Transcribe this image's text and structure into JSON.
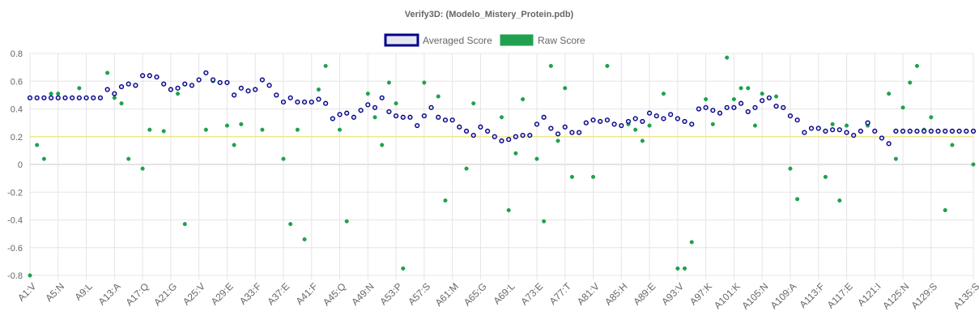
{
  "chart_data": {
    "type": "scatter",
    "title": "Verify3D:  (Modelo_Mistery_Protein.pdb)",
    "legend_position": "top-center",
    "ylim": [
      -0.8,
      0.8
    ],
    "yticks": [
      "0.8",
      "0.6",
      "0.4",
      "0.2",
      "0",
      "-0.2",
      "-0.4",
      "-0.6",
      "-0.8"
    ],
    "ytick_values": [
      0.8,
      0.6,
      0.4,
      0.2,
      0,
      -0.2,
      -0.4,
      -0.6,
      -0.8
    ],
    "threshold": 0.2,
    "colors": {
      "averaged_stroke": "#00008b",
      "averaged_fill": "#e6e6f0",
      "raw": "#21a04f",
      "threshold": "#f0e68c",
      "grid": "#e5e5e5",
      "zero": "#c8c8c8"
    },
    "x_labels": [
      "A1:V",
      "A5:N",
      "A9:L",
      "A13:A",
      "A17:Q",
      "A21:G",
      "A25:V",
      "A29:E",
      "A33:F",
      "A37:E",
      "A41:F",
      "A45:Q",
      "A49:N",
      "A53:P",
      "A57:S",
      "A61:M",
      "A65:G",
      "A69:L",
      "A73:E",
      "A77:T",
      "A81:V",
      "A85:H",
      "A89:E",
      "A93:V",
      "A97:K",
      "A101:K",
      "A105:N",
      "A109:A",
      "A113:F",
      "A117:E",
      "A121:I",
      "A125:N",
      "A129:S",
      "A135:S"
    ],
    "x_label_positions": [
      1,
      5,
      9,
      13,
      17,
      21,
      25,
      29,
      33,
      37,
      41,
      45,
      49,
      53,
      57,
      61,
      65,
      69,
      73,
      77,
      81,
      85,
      89,
      93,
      97,
      101,
      105,
      109,
      113,
      117,
      121,
      125,
      129,
      135
    ],
    "residue_count": 135,
    "series": [
      {
        "name": "Averaged Score",
        "values": [
          0.48,
          0.48,
          0.48,
          0.48,
          0.48,
          0.48,
          0.48,
          0.48,
          0.48,
          0.48,
          0.48,
          0.54,
          0.51,
          0.56,
          0.58,
          0.57,
          0.64,
          0.64,
          0.63,
          0.58,
          0.54,
          0.55,
          0.58,
          0.57,
          0.61,
          0.66,
          0.61,
          0.59,
          0.59,
          0.5,
          0.55,
          0.53,
          0.54,
          0.61,
          0.57,
          0.5,
          0.45,
          0.48,
          0.45,
          0.45,
          0.45,
          0.47,
          0.44,
          0.33,
          0.36,
          0.37,
          0.34,
          0.39,
          0.43,
          0.41,
          0.48,
          0.38,
          0.35,
          0.34,
          0.34,
          0.28,
          0.35,
          0.41,
          0.34,
          0.32,
          0.32,
          0.27,
          0.24,
          0.21,
          0.27,
          0.24,
          0.2,
          0.17,
          0.18,
          0.2,
          0.21,
          0.21,
          0.29,
          0.34,
          0.26,
          0.22,
          0.27,
          0.23,
          0.23,
          0.3,
          0.32,
          0.31,
          0.32,
          0.29,
          0.28,
          0.31,
          0.33,
          0.31,
          0.37,
          0.35,
          0.33,
          0.36,
          0.33,
          0.31,
          0.29,
          0.4,
          0.41,
          0.39,
          0.37,
          0.41,
          0.41,
          0.44,
          0.38,
          0.41,
          0.46,
          0.48,
          0.42,
          0.41,
          0.35,
          0.32,
          0.23,
          0.26,
          0.26,
          0.24,
          0.25,
          0.25,
          0.23,
          0.21,
          0.24,
          0.3,
          0.24,
          0.19,
          0.15,
          0.24,
          0.24,
          0.24,
          0.24,
          0.24,
          0.24,
          0.24,
          0.24,
          0.24,
          0.24,
          0.24,
          0.24
        ]
      },
      {
        "name": "Raw Score",
        "values": [
          -0.8,
          0.14,
          0.04,
          0.51,
          0.51,
          null,
          null,
          0.55,
          null,
          null,
          null,
          0.66,
          0.48,
          0.44,
          0.04,
          null,
          -0.03,
          0.25,
          null,
          0.24,
          null,
          0.51,
          -0.43,
          null,
          null,
          0.25,
          0.6,
          null,
          0.28,
          0.14,
          0.29,
          null,
          null,
          0.25,
          null,
          null,
          0.04,
          -0.43,
          0.25,
          -0.54,
          null,
          0.54,
          0.71,
          null,
          0.25,
          -0.41,
          null,
          null,
          0.51,
          0.34,
          0.14,
          0.59,
          0.44,
          -0.75,
          null,
          null,
          0.59,
          null,
          0.49,
          -0.26,
          null,
          null,
          -0.03,
          0.44,
          null,
          null,
          null,
          0.34,
          -0.33,
          0.08,
          0.47,
          null,
          0.04,
          -0.41,
          0.71,
          0.17,
          0.55,
          -0.09,
          null,
          null,
          -0.09,
          null,
          0.71,
          null,
          null,
          0.29,
          0.25,
          0.17,
          0.28,
          null,
          0.51,
          null,
          -0.75,
          -0.75,
          -0.56,
          null,
          0.47,
          0.29,
          null,
          0.77,
          0.47,
          0.55,
          0.55,
          0.28,
          0.51,
          null,
          0.49,
          null,
          -0.03,
          -0.25,
          null,
          null,
          null,
          -0.09,
          0.29,
          -0.26,
          0.28,
          0.21,
          null,
          0.28,
          null,
          null,
          0.51,
          0.04,
          0.41,
          0.59,
          0.71,
          0.25,
          0.34,
          null,
          -0.33,
          0.14,
          null,
          null,
          0
        ]
      }
    ]
  }
}
